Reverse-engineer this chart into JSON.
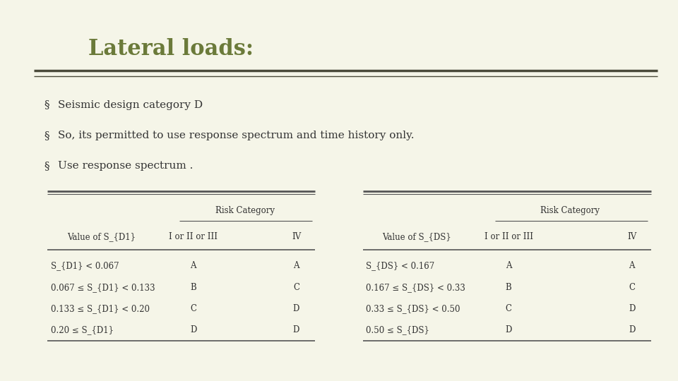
{
  "title": "Lateral loads:",
  "title_color": "#6b7a3a",
  "bg_color": "#f5f5e8",
  "bullets": [
    "Seismic design category D",
    "So, its permitted to use response spectrum and time history only.",
    "Use response spectrum ."
  ],
  "bullet_color": "#333333",
  "bullet_symbol": "§",
  "separator_color": "#4a4a3a",
  "table1_title": "Risk Category",
  "table1_col1_header": "Value of S_{D1}",
  "table1_col2_header": "I or II or III",
  "table1_col3_header": "IV",
  "table1_rows": [
    [
      "S_{D1} < 0.067",
      "A",
      "A"
    ],
    [
      "0.067 ≤ S_{D1} < 0.133",
      "B",
      "C"
    ],
    [
      "0.133 ≤ S_{D1} < 0.20",
      "C",
      "D"
    ],
    [
      "0.20 ≤ S_{D1}",
      "D",
      "D"
    ]
  ],
  "table2_title": "Risk Category",
  "table2_col1_header": "Value of S_{DS}",
  "table2_col2_header": "I or II or III",
  "table2_col3_header": "IV",
  "table2_rows": [
    [
      "S_{DS} < 0.167",
      "A",
      "A"
    ],
    [
      "0.167 ≤ S_{DS} < 0.33",
      "B",
      "C"
    ],
    [
      "0.33 ≤ S_{DS} < 0.50",
      "C",
      "D"
    ],
    [
      "0.50 ≤ S_{DS}",
      "D",
      "D"
    ]
  ],
  "table_text_color": "#333333",
  "table_line_color": "#555555"
}
